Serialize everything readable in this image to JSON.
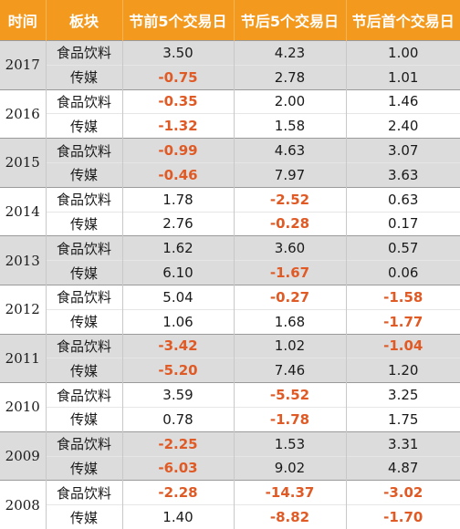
{
  "header": {
    "time": "时间",
    "sector": "板块",
    "before5": "节前5个交易日",
    "after5": "节后5个交易日",
    "afterFirst": "节后首个交易日"
  },
  "colors": {
    "header_bg": "#f39a1e",
    "negative_text": "#e05a25",
    "stripe_bg": "#dcdcdc"
  },
  "rows": [
    {
      "year": "2017",
      "food": [
        "3.50",
        "4.23",
        "1.00"
      ],
      "media": [
        "-0.75",
        "2.78",
        "1.01"
      ]
    },
    {
      "year": "2016",
      "food": [
        "-0.35",
        "2.00",
        "1.46"
      ],
      "media": [
        "-1.32",
        "1.58",
        "2.40"
      ]
    },
    {
      "year": "2015",
      "food": [
        "-0.99",
        "4.63",
        "3.07"
      ],
      "media": [
        "-0.46",
        "7.97",
        "3.63"
      ]
    },
    {
      "year": "2014",
      "food": [
        "1.78",
        "-2.52",
        "0.63"
      ],
      "media": [
        "2.76",
        "-0.28",
        "0.17"
      ]
    },
    {
      "year": "2013",
      "food": [
        "1.62",
        "3.60",
        "0.57"
      ],
      "media": [
        "6.10",
        "-1.67",
        "0.06"
      ]
    },
    {
      "year": "2012",
      "food": [
        "5.04",
        "-0.27",
        "-1.58"
      ],
      "media": [
        "1.06",
        "1.68",
        "-1.77"
      ]
    },
    {
      "year": "2011",
      "food": [
        "-3.42",
        "1.02",
        "-1.04"
      ],
      "media": [
        "-5.20",
        "7.46",
        "1.20"
      ]
    },
    {
      "year": "2010",
      "food": [
        "3.59",
        "-5.52",
        "3.25"
      ],
      "media": [
        "0.78",
        "-1.78",
        "1.75"
      ]
    },
    {
      "year": "2009",
      "food": [
        "-2.25",
        "1.53",
        "3.31"
      ],
      "media": [
        "-6.03",
        "9.02",
        "4.87"
      ]
    },
    {
      "year": "2008",
      "food": [
        "-2.28",
        "-14.37",
        "-3.02"
      ],
      "media": [
        "1.40",
        "-8.82",
        "-1.70"
      ]
    }
  ],
  "labels": {
    "food": "食品饮料",
    "media": "传媒"
  }
}
